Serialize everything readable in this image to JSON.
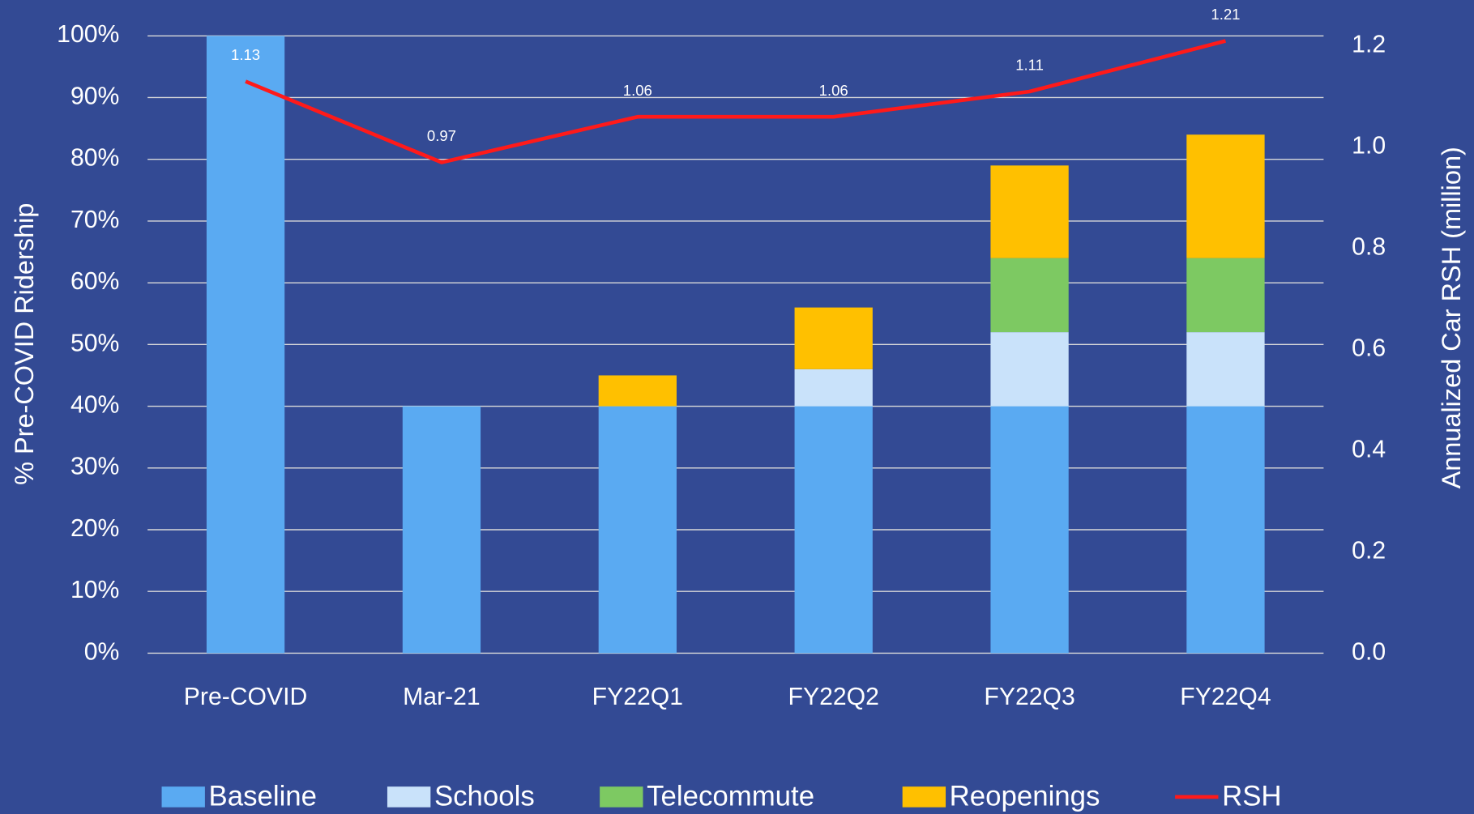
{
  "chart_data": {
    "type": "bar",
    "stacked": true,
    "categories": [
      "Pre-COVID",
      "Mar-21",
      "FY22Q1",
      "FY22Q2",
      "FY22Q3",
      "FY22Q4"
    ],
    "ylabel": "% Pre-COVID Ridership",
    "y2label": "Annualized Car RSH (million)",
    "ylim": [
      0,
      100
    ],
    "yticks": [
      {
        "value": 0,
        "label": "0%"
      },
      {
        "value": 10,
        "label": "10%"
      },
      {
        "value": 20,
        "label": "20%"
      },
      {
        "value": 30,
        "label": "30%"
      },
      {
        "value": 40,
        "label": "40%"
      },
      {
        "value": 50,
        "label": "50%"
      },
      {
        "value": 60,
        "label": "60%"
      },
      {
        "value": 70,
        "label": "70%"
      },
      {
        "value": 80,
        "label": "80%"
      },
      {
        "value": 90,
        "label": "90%"
      },
      {
        "value": 100,
        "label": "100%"
      }
    ],
    "y2lim": [
      0,
      1.22
    ],
    "y2ticks": [
      {
        "value": 0,
        "label": "0.0"
      },
      {
        "value": 0.2,
        "label": "0.2"
      },
      {
        "value": 0.4,
        "label": "0.4"
      },
      {
        "value": 0.6,
        "label": "0.6"
      },
      {
        "value": 0.8,
        "label": "0.8"
      },
      {
        "value": 1.0,
        "label": "1.0"
      },
      {
        "value": 1.2,
        "label": "1.2"
      }
    ],
    "grid": true,
    "legend": "bottom",
    "series": [
      {
        "name": "Baseline",
        "color": "#5aaaf2",
        "values": [
          100,
          40,
          40,
          40,
          40,
          40
        ]
      },
      {
        "name": "Schools",
        "color": "#c9e2fa",
        "values": [
          0,
          0,
          0,
          6,
          12,
          12
        ]
      },
      {
        "name": "Telecommute",
        "color": "#7dc962",
        "values": [
          0,
          0,
          0,
          0,
          12,
          12
        ]
      },
      {
        "name": "Reopenings",
        "color": "#ffc000",
        "values": [
          0,
          0,
          5,
          10,
          15,
          20
        ]
      },
      {
        "name": "RSH",
        "color": "#ff1a1a",
        "type": "line",
        "axis": "y2",
        "values": [
          1.13,
          0.97,
          1.06,
          1.06,
          1.11,
          1.21
        ]
      }
    ]
  }
}
